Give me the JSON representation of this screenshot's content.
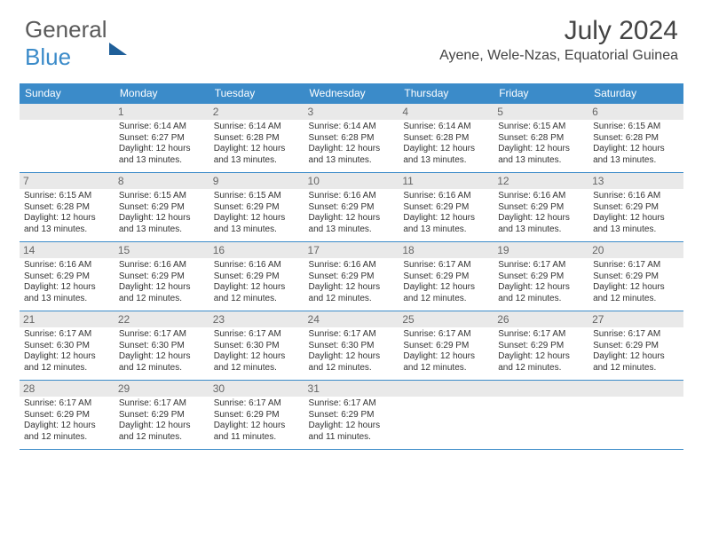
{
  "logo": {
    "word1": "General",
    "word2": "Blue"
  },
  "title": "July 2024",
  "location": "Ayene, Wele-Nzas, Equatorial Guinea",
  "colors": {
    "header_bg": "#3b8bc9",
    "header_text": "#ffffff",
    "daynum_bg": "#e9e9e9",
    "daynum_text": "#666666",
    "body_text": "#333333",
    "rule": "#3b8bc9",
    "page_bg": "#ffffff"
  },
  "weekdays": [
    "Sunday",
    "Monday",
    "Tuesday",
    "Wednesday",
    "Thursday",
    "Friday",
    "Saturday"
  ],
  "weeks": [
    [
      {
        "n": "",
        "empty": true
      },
      {
        "n": "1",
        "sunrise": "6:14 AM",
        "sunset": "6:27 PM",
        "daylight": "12 hours and 13 minutes."
      },
      {
        "n": "2",
        "sunrise": "6:14 AM",
        "sunset": "6:28 PM",
        "daylight": "12 hours and 13 minutes."
      },
      {
        "n": "3",
        "sunrise": "6:14 AM",
        "sunset": "6:28 PM",
        "daylight": "12 hours and 13 minutes."
      },
      {
        "n": "4",
        "sunrise": "6:14 AM",
        "sunset": "6:28 PM",
        "daylight": "12 hours and 13 minutes."
      },
      {
        "n": "5",
        "sunrise": "6:15 AM",
        "sunset": "6:28 PM",
        "daylight": "12 hours and 13 minutes."
      },
      {
        "n": "6",
        "sunrise": "6:15 AM",
        "sunset": "6:28 PM",
        "daylight": "12 hours and 13 minutes."
      }
    ],
    [
      {
        "n": "7",
        "sunrise": "6:15 AM",
        "sunset": "6:28 PM",
        "daylight": "12 hours and 13 minutes."
      },
      {
        "n": "8",
        "sunrise": "6:15 AM",
        "sunset": "6:29 PM",
        "daylight": "12 hours and 13 minutes."
      },
      {
        "n": "9",
        "sunrise": "6:15 AM",
        "sunset": "6:29 PM",
        "daylight": "12 hours and 13 minutes."
      },
      {
        "n": "10",
        "sunrise": "6:16 AM",
        "sunset": "6:29 PM",
        "daylight": "12 hours and 13 minutes."
      },
      {
        "n": "11",
        "sunrise": "6:16 AM",
        "sunset": "6:29 PM",
        "daylight": "12 hours and 13 minutes."
      },
      {
        "n": "12",
        "sunrise": "6:16 AM",
        "sunset": "6:29 PM",
        "daylight": "12 hours and 13 minutes."
      },
      {
        "n": "13",
        "sunrise": "6:16 AM",
        "sunset": "6:29 PM",
        "daylight": "12 hours and 13 minutes."
      }
    ],
    [
      {
        "n": "14",
        "sunrise": "6:16 AM",
        "sunset": "6:29 PM",
        "daylight": "12 hours and 13 minutes."
      },
      {
        "n": "15",
        "sunrise": "6:16 AM",
        "sunset": "6:29 PM",
        "daylight": "12 hours and 12 minutes."
      },
      {
        "n": "16",
        "sunrise": "6:16 AM",
        "sunset": "6:29 PM",
        "daylight": "12 hours and 12 minutes."
      },
      {
        "n": "17",
        "sunrise": "6:16 AM",
        "sunset": "6:29 PM",
        "daylight": "12 hours and 12 minutes."
      },
      {
        "n": "18",
        "sunrise": "6:17 AM",
        "sunset": "6:29 PM",
        "daylight": "12 hours and 12 minutes."
      },
      {
        "n": "19",
        "sunrise": "6:17 AM",
        "sunset": "6:29 PM",
        "daylight": "12 hours and 12 minutes."
      },
      {
        "n": "20",
        "sunrise": "6:17 AM",
        "sunset": "6:29 PM",
        "daylight": "12 hours and 12 minutes."
      }
    ],
    [
      {
        "n": "21",
        "sunrise": "6:17 AM",
        "sunset": "6:30 PM",
        "daylight": "12 hours and 12 minutes."
      },
      {
        "n": "22",
        "sunrise": "6:17 AM",
        "sunset": "6:30 PM",
        "daylight": "12 hours and 12 minutes."
      },
      {
        "n": "23",
        "sunrise": "6:17 AM",
        "sunset": "6:30 PM",
        "daylight": "12 hours and 12 minutes."
      },
      {
        "n": "24",
        "sunrise": "6:17 AM",
        "sunset": "6:30 PM",
        "daylight": "12 hours and 12 minutes."
      },
      {
        "n": "25",
        "sunrise": "6:17 AM",
        "sunset": "6:29 PM",
        "daylight": "12 hours and 12 minutes."
      },
      {
        "n": "26",
        "sunrise": "6:17 AM",
        "sunset": "6:29 PM",
        "daylight": "12 hours and 12 minutes."
      },
      {
        "n": "27",
        "sunrise": "6:17 AM",
        "sunset": "6:29 PM",
        "daylight": "12 hours and 12 minutes."
      }
    ],
    [
      {
        "n": "28",
        "sunrise": "6:17 AM",
        "sunset": "6:29 PM",
        "daylight": "12 hours and 12 minutes."
      },
      {
        "n": "29",
        "sunrise": "6:17 AM",
        "sunset": "6:29 PM",
        "daylight": "12 hours and 12 minutes."
      },
      {
        "n": "30",
        "sunrise": "6:17 AM",
        "sunset": "6:29 PM",
        "daylight": "12 hours and 11 minutes."
      },
      {
        "n": "31",
        "sunrise": "6:17 AM",
        "sunset": "6:29 PM",
        "daylight": "12 hours and 11 minutes."
      },
      {
        "n": "",
        "empty": true
      },
      {
        "n": "",
        "empty": true
      },
      {
        "n": "",
        "empty": true
      }
    ]
  ],
  "labels": {
    "sunrise": "Sunrise:",
    "sunset": "Sunset:",
    "daylight": "Daylight:"
  }
}
